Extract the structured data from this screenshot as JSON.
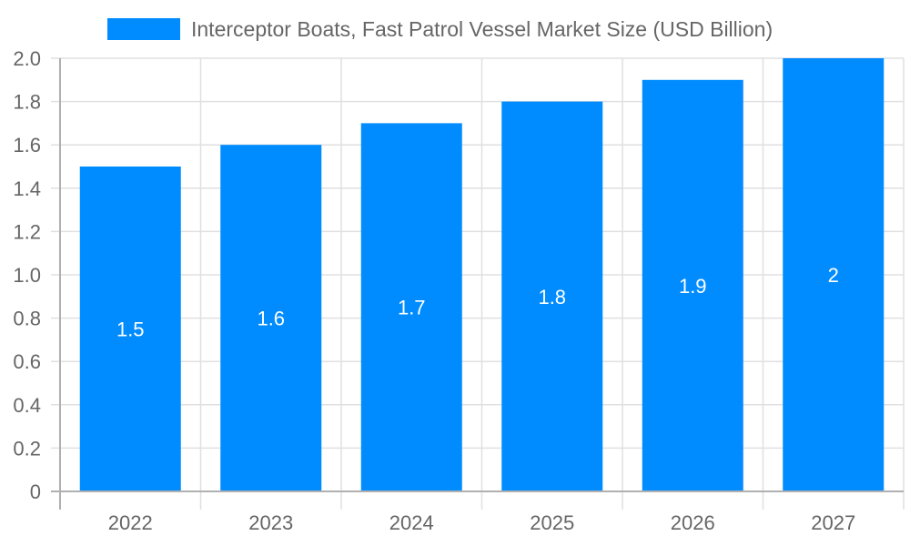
{
  "chart_data": {
    "type": "bar",
    "title": "",
    "xlabel": "",
    "ylabel": "",
    "categories": [
      "2022",
      "2023",
      "2024",
      "2025",
      "2026",
      "2027"
    ],
    "series": [
      {
        "name": "Interceptor Boats, Fast Patrol Vessel Market Size (USD Billion)",
        "values": [
          1.5,
          1.6,
          1.7,
          1.8,
          1.9,
          2
        ],
        "data_labels": [
          "1.5",
          "1.6",
          "1.7",
          "1.8",
          "1.9",
          "2"
        ],
        "color": "#008cff"
      }
    ],
    "ylim": [
      0,
      2.0
    ],
    "yticks": [
      "0",
      "0.2",
      "0.4",
      "0.6",
      "0.8",
      "1.0",
      "1.2",
      "1.4",
      "1.6",
      "1.8",
      "2.0"
    ],
    "grid": true,
    "legend_position": "top"
  },
  "legend": {
    "label": "Interceptor Boats, Fast Patrol Vessel Market Size (USD Billion)",
    "color": "#008cff"
  },
  "colors": {
    "bar": "#008cff",
    "grid": "#e0e0e0",
    "axis": "#b0b0b0",
    "tick_text": "#666666",
    "data_label": "#ffffff"
  }
}
